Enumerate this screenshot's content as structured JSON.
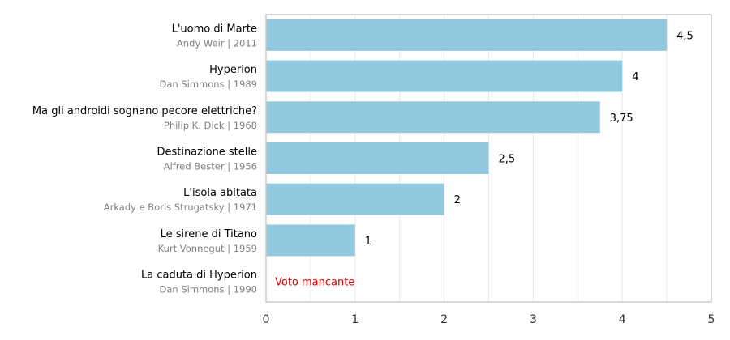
{
  "chart_data": {
    "type": "bar",
    "orientation": "horizontal",
    "xlim": [
      0,
      5
    ],
    "x_ticks": [
      "0",
      "1",
      "2",
      "3",
      "4",
      "5"
    ],
    "grid": true,
    "bar_color": "#93c9df",
    "missing_color": "#e00000",
    "missing_label": "Voto mancante",
    "books": [
      {
        "title": "L'uomo di Marte",
        "author_year": "Andy Weir | 2011",
        "value": 4.5,
        "value_label": "4,5"
      },
      {
        "title": "Hyperion",
        "author_year": "Dan Simmons | 1989",
        "value": 4,
        "value_label": "4"
      },
      {
        "title": "Ma gli androidi sognano pecore elettriche?",
        "author_year": "Philip K. Dick | 1968",
        "value": 3.75,
        "value_label": "3,75"
      },
      {
        "title": "Destinazione stelle",
        "author_year": "Alfred Bester | 1956",
        "value": 2.5,
        "value_label": "2,5"
      },
      {
        "title": "L'isola abitata",
        "author_year": "Arkady e Boris Strugatsky | 1971",
        "value": 2,
        "value_label": "2"
      },
      {
        "title": "Le sirene di Titano",
        "author_year": "Kurt Vonnegut | 1959",
        "value": 1,
        "value_label": "1"
      },
      {
        "title": "La caduta di Hyperion",
        "author_year": "Dan Simmons | 1990",
        "value": null,
        "value_label": ""
      }
    ]
  }
}
